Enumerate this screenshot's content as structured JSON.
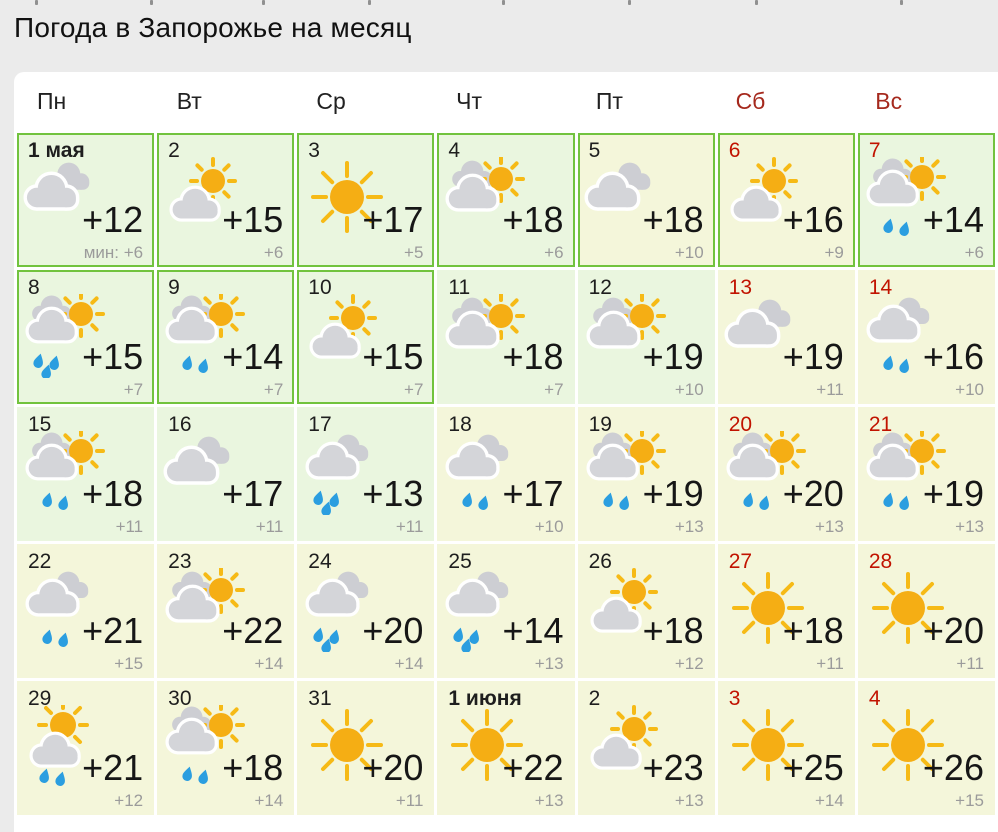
{
  "page": {
    "title": "Погода в Запорожье на месяц"
  },
  "colors": {
    "page_bg": "#ebebeb",
    "card_bg": "#ffffff",
    "past_border_green": "#72c33e",
    "cell_bg_green": "#eaf6df",
    "cell_bg_yellow": "#f4f6da",
    "weekend_header_red": "#a5291d",
    "weekend_number_red": "#c11300",
    "temp_text": "#161616",
    "min_text": "#9b9b9b",
    "cloud_front": "#d4d5d9",
    "cloud_back": "#cdced3",
    "sun": "#f5ae14",
    "sun_ray": "#f6ba16",
    "rain_drop": "#2b9ee0"
  },
  "calendar": {
    "day_headers": [
      {
        "label": "Пн",
        "weekend": false
      },
      {
        "label": "Вт",
        "weekend": false
      },
      {
        "label": "Ср",
        "weekend": false
      },
      {
        "label": "Чт",
        "weekend": false
      },
      {
        "label": "Пт",
        "weekend": false
      },
      {
        "label": "Сб",
        "weekend": true
      },
      {
        "label": "Вс",
        "weekend": true
      }
    ],
    "days": [
      {
        "label": "1 мая",
        "bold": true,
        "weekend": false,
        "past": true,
        "bg": "green",
        "icon": "cloudy",
        "temp": "+12",
        "min": "мин: +6"
      },
      {
        "label": "2",
        "bold": false,
        "weekend": false,
        "past": true,
        "bg": "green",
        "icon": "sun-cloud",
        "temp": "+15",
        "min": "+6"
      },
      {
        "label": "3",
        "bold": false,
        "weekend": false,
        "past": true,
        "bg": "green",
        "icon": "sunny",
        "temp": "+17",
        "min": "+5"
      },
      {
        "label": "4",
        "bold": false,
        "weekend": false,
        "past": true,
        "bg": "green",
        "icon": "sun-clouds",
        "temp": "+18",
        "min": "+6"
      },
      {
        "label": "5",
        "bold": false,
        "weekend": false,
        "past": true,
        "bg": "yellow",
        "icon": "cloudy",
        "temp": "+18",
        "min": "+10"
      },
      {
        "label": "6",
        "bold": false,
        "weekend": true,
        "past": true,
        "bg": "yellow",
        "icon": "sun-cloud",
        "temp": "+16",
        "min": "+9"
      },
      {
        "label": "7",
        "bold": false,
        "weekend": true,
        "past": true,
        "bg": "green",
        "icon": "sun-clouds-rain-2",
        "temp": "+14",
        "min": "+6"
      },
      {
        "label": "8",
        "bold": false,
        "weekend": false,
        "past": true,
        "bg": "green",
        "icon": "sun-clouds-rain-3",
        "temp": "+15",
        "min": "+7"
      },
      {
        "label": "9",
        "bold": false,
        "weekend": false,
        "past": true,
        "bg": "green",
        "icon": "sun-clouds-rain-2",
        "temp": "+14",
        "min": "+7"
      },
      {
        "label": "10",
        "bold": false,
        "weekend": false,
        "past": true,
        "bg": "green",
        "icon": "sun-cloud",
        "temp": "+15",
        "min": "+7"
      },
      {
        "label": "11",
        "bold": false,
        "weekend": false,
        "past": false,
        "bg": "green",
        "icon": "sun-clouds",
        "temp": "+18",
        "min": "+7"
      },
      {
        "label": "12",
        "bold": false,
        "weekend": false,
        "past": false,
        "bg": "green",
        "icon": "sun-clouds",
        "temp": "+19",
        "min": "+10"
      },
      {
        "label": "13",
        "bold": false,
        "weekend": true,
        "past": false,
        "bg": "yellow",
        "icon": "cloudy",
        "temp": "+19",
        "min": "+11"
      },
      {
        "label": "14",
        "bold": false,
        "weekend": true,
        "past": false,
        "bg": "yellow",
        "icon": "clouds-rain-2",
        "temp": "+16",
        "min": "+10"
      },
      {
        "label": "15",
        "bold": false,
        "weekend": false,
        "past": false,
        "bg": "green",
        "icon": "sun-clouds-rain-2",
        "temp": "+18",
        "min": "+11"
      },
      {
        "label": "16",
        "bold": false,
        "weekend": false,
        "past": false,
        "bg": "green",
        "icon": "cloudy",
        "temp": "+17",
        "min": "+11"
      },
      {
        "label": "17",
        "bold": false,
        "weekend": false,
        "past": false,
        "bg": "green",
        "icon": "clouds-rain-3",
        "temp": "+13",
        "min": "+11"
      },
      {
        "label": "18",
        "bold": false,
        "weekend": false,
        "past": false,
        "bg": "yellow",
        "icon": "clouds-rain-2",
        "temp": "+17",
        "min": "+10"
      },
      {
        "label": "19",
        "bold": false,
        "weekend": false,
        "past": false,
        "bg": "yellow",
        "icon": "sun-clouds-rain-2",
        "temp": "+19",
        "min": "+13"
      },
      {
        "label": "20",
        "bold": false,
        "weekend": true,
        "past": false,
        "bg": "yellow",
        "icon": "sun-clouds-rain-2",
        "temp": "+20",
        "min": "+13"
      },
      {
        "label": "21",
        "bold": false,
        "weekend": true,
        "past": false,
        "bg": "yellow",
        "icon": "sun-clouds-rain-2",
        "temp": "+19",
        "min": "+13"
      },
      {
        "label": "22",
        "bold": false,
        "weekend": false,
        "past": false,
        "bg": "yellow",
        "icon": "clouds-rain-2",
        "temp": "+21",
        "min": "+15"
      },
      {
        "label": "23",
        "bold": false,
        "weekend": false,
        "past": false,
        "bg": "yellow",
        "icon": "sun-clouds",
        "temp": "+22",
        "min": "+14"
      },
      {
        "label": "24",
        "bold": false,
        "weekend": false,
        "past": false,
        "bg": "yellow",
        "icon": "clouds-rain-3",
        "temp": "+20",
        "min": "+14"
      },
      {
        "label": "25",
        "bold": false,
        "weekend": false,
        "past": false,
        "bg": "yellow",
        "icon": "clouds-rain-3",
        "temp": "+14",
        "min": "+13"
      },
      {
        "label": "26",
        "bold": false,
        "weekend": false,
        "past": false,
        "bg": "yellow",
        "icon": "sun-cloud",
        "temp": "+18",
        "min": "+12"
      },
      {
        "label": "27",
        "bold": false,
        "weekend": true,
        "past": false,
        "bg": "yellow",
        "icon": "sunny",
        "temp": "+18",
        "min": "+11"
      },
      {
        "label": "28",
        "bold": false,
        "weekend": true,
        "past": false,
        "bg": "yellow",
        "icon": "sunny",
        "temp": "+20",
        "min": "+11"
      },
      {
        "label": "29",
        "bold": false,
        "weekend": false,
        "past": false,
        "bg": "yellow",
        "icon": "sun-cloud-rain-2",
        "temp": "+21",
        "min": "+12"
      },
      {
        "label": "30",
        "bold": false,
        "weekend": false,
        "past": false,
        "bg": "yellow",
        "icon": "sun-clouds-rain-2",
        "temp": "+18",
        "min": "+14"
      },
      {
        "label": "31",
        "bold": false,
        "weekend": false,
        "past": false,
        "bg": "yellow",
        "icon": "sunny",
        "temp": "+20",
        "min": "+11"
      },
      {
        "label": "1 июня",
        "bold": true,
        "weekend": false,
        "past": false,
        "bg": "yellow",
        "icon": "sunny",
        "temp": "+22",
        "min": "+13"
      },
      {
        "label": "2",
        "bold": false,
        "weekend": false,
        "past": false,
        "bg": "yellow",
        "icon": "sun-cloud",
        "temp": "+23",
        "min": "+13"
      },
      {
        "label": "3",
        "bold": false,
        "weekend": true,
        "past": false,
        "bg": "yellow",
        "icon": "sunny",
        "temp": "+25",
        "min": "+14"
      },
      {
        "label": "4",
        "bold": false,
        "weekend": true,
        "past": false,
        "bg": "yellow",
        "icon": "sunny",
        "temp": "+26",
        "min": "+15"
      }
    ]
  }
}
